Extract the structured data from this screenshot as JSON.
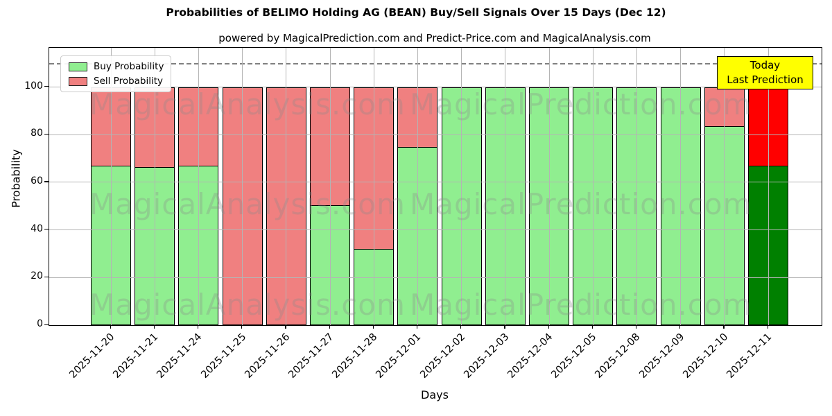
{
  "title": "Probabilities of BELIMO Holding AG (BEAN) Buy/Sell Signals Over 15 Days (Dec 12)",
  "subtitle": "powered by MagicalPrediction.com and Predict-Price.com and MagicalAnalysis.com",
  "legend": {
    "buy_label": "Buy Probability",
    "sell_label": "Sell Probability"
  },
  "annotation": {
    "line1": "Today",
    "line2": "Last Prediction",
    "bg_color": "#ffff00",
    "border_color": "#000000"
  },
  "watermarks": {
    "left": "MagicalAnalysis.com",
    "right": "MagicalPrediction.com",
    "color": "#8a8a8a"
  },
  "colors": {
    "buy": "#90EE90",
    "sell": "#F08080",
    "today_buy": "#008000",
    "today_sell": "#FF0000",
    "bar_edge": "#000000",
    "grid": "#b4b4b4",
    "dashed_line": "#808080"
  },
  "chart_data": {
    "type": "bar",
    "stacked": true,
    "title": "Probabilities of BELIMO Holding AG (BEAN) Buy/Sell Signals Over 15 Days (Dec 12)",
    "xlabel": "Days",
    "ylabel": "Probability",
    "categories": [
      "2025-11-20",
      "2025-11-21",
      "2025-11-24",
      "2025-11-25",
      "2025-11-26",
      "2025-11-27",
      "2025-11-28",
      "2025-12-01",
      "2025-12-02",
      "2025-12-03",
      "2025-12-04",
      "2025-12-05",
      "2025-12-08",
      "2025-12-09",
      "2025-12-10",
      "2025-12-11"
    ],
    "series": [
      {
        "name": "Buy Probability",
        "color": "#90EE90",
        "values": [
          67,
          66.5,
          67,
          0,
          0,
          50.5,
          32,
          75,
          100,
          100,
          100,
          100,
          100,
          100,
          83.5,
          67
        ]
      },
      {
        "name": "Sell Probability",
        "color": "#F08080",
        "values": [
          33,
          33.5,
          33,
          100,
          100,
          49.5,
          68,
          25,
          0,
          0,
          0,
          0,
          0,
          0,
          16.5,
          33
        ]
      }
    ],
    "today_bar_index": 15,
    "today_colors": {
      "buy": "#008000",
      "sell": "#FF0000"
    },
    "yticks": [
      0,
      20,
      40,
      60,
      80,
      100
    ],
    "ylim": [
      0,
      116.5
    ],
    "dashed_line_y": 110,
    "grid": true,
    "legend_position": "upper left"
  }
}
